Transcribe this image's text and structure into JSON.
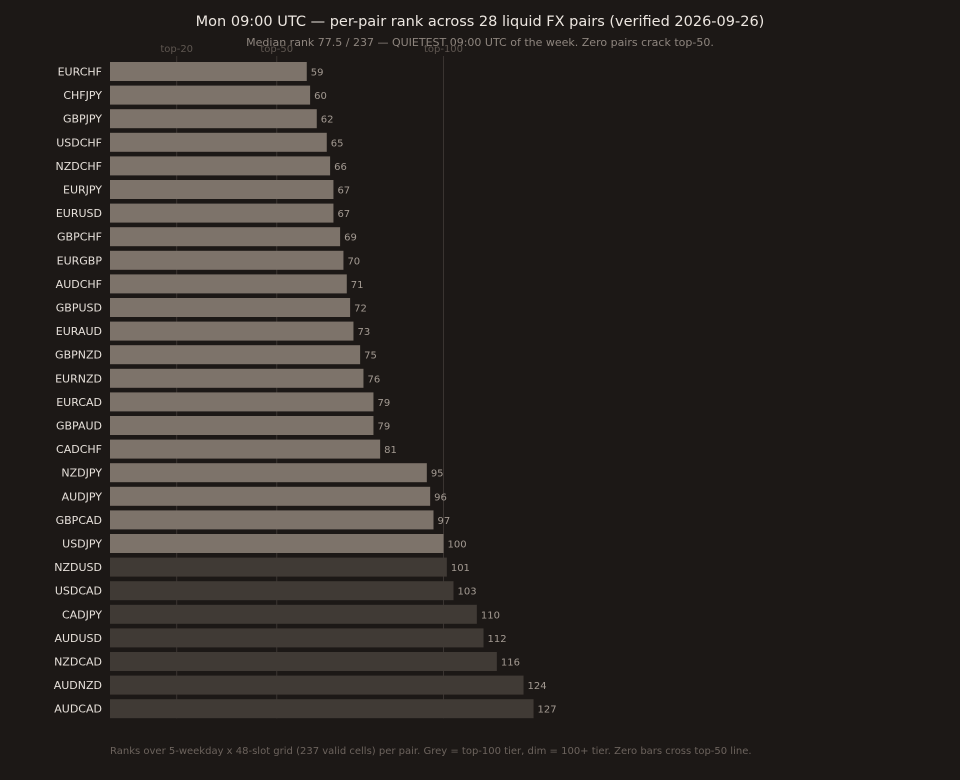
{
  "chart_data": {
    "type": "bar",
    "orientation": "horizontal",
    "title": "Mon 09:00 UTC — per-pair rank across 28 liquid FX pairs (verified 2026-09-26)",
    "subtitle": "Median rank 77.5 / 237 — QUIETEST 09:00 UTC of the week. Zero pairs crack top-50.",
    "footnote": "Ranks over 5-weekday x 48-slot grid (237 valid cells) per pair. Grey = top-100 tier, dim = 100+ tier. Zero bars cross top-50 line.",
    "categories": [
      "EURCHF",
      "CHFJPY",
      "GBPJPY",
      "USDCHF",
      "NZDCHF",
      "EURJPY",
      "EURUSD",
      "GBPCHF",
      "EURGBP",
      "AUDCHF",
      "GBPUSD",
      "EURAUD",
      "GBPNZD",
      "EURNZD",
      "EURCAD",
      "GBPAUD",
      "CADCHF",
      "NZDJPY",
      "AUDJPY",
      "GBPCAD",
      "USDJPY",
      "NZDUSD",
      "USDCAD",
      "CADJPY",
      "AUDUSD",
      "NZDCAD",
      "AUDNZD",
      "AUDCAD"
    ],
    "values": [
      59,
      60,
      62,
      65,
      66,
      67,
      67,
      69,
      70,
      71,
      72,
      73,
      75,
      76,
      79,
      79,
      81,
      95,
      96,
      97,
      100,
      101,
      103,
      110,
      112,
      116,
      124,
      127
    ],
    "reference_lines": [
      {
        "label": "top-20",
        "value": 20
      },
      {
        "label": "top-50",
        "value": 50
      },
      {
        "label": "top-100",
        "value": 100
      }
    ],
    "tiers": [
      {
        "name": "top-100 tier",
        "max": 100,
        "color": "#7d736a"
      },
      {
        "name": "100+ tier",
        "min": 101,
        "color": "#403a35"
      }
    ],
    "xlim": [
      0,
      237
    ],
    "grid": false,
    "colors": {
      "background": "#1c1816",
      "label": "#e6e0da",
      "value_label": "#a39a92",
      "reference_line": "#3a3431",
      "reference_label": "#5e5650"
    }
  }
}
